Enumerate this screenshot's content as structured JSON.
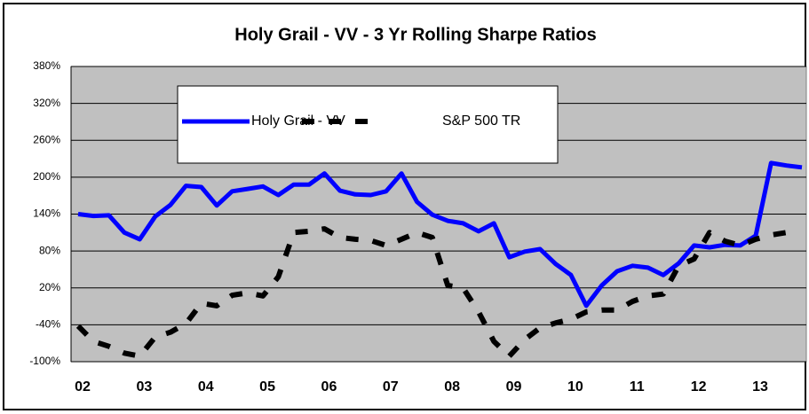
{
  "chart_data": {
    "type": "line",
    "title": "Holy Grail - VV - 3 Yr Rolling Sharpe Ratios",
    "categories": [
      "02",
      null,
      null,
      null,
      "03",
      null,
      null,
      null,
      "04",
      null,
      null,
      null,
      "05",
      null,
      null,
      null,
      "06",
      null,
      null,
      null,
      "07",
      null,
      null,
      null,
      "08",
      null,
      null,
      null,
      "09",
      null,
      null,
      null,
      "10",
      null,
      null,
      null,
      "11",
      null,
      null,
      null,
      "12",
      null,
      null,
      null,
      "13",
      null,
      null,
      null
    ],
    "series": [
      {
        "name": "Holy Grail - VV",
        "color": "#0000ff",
        "dashed": false,
        "values": [
          140,
          137,
          138,
          110,
          99,
          136,
          155,
          186,
          184,
          154,
          177,
          181,
          185,
          171,
          188,
          188,
          206,
          178,
          172,
          171,
          177,
          206,
          160,
          139,
          129,
          125,
          112,
          125,
          70,
          79,
          83,
          59,
          41,
          -9,
          24,
          47,
          56,
          53,
          41,
          60,
          89,
          86,
          90,
          89,
          105,
          223,
          219,
          216
        ]
      },
      {
        "name": "S&P 500 TR",
        "color": "#000000",
        "dashed": true,
        "values": [
          -42,
          -67,
          -75,
          -86,
          -91,
          -60,
          -52,
          -38,
          -5,
          -9,
          8,
          12,
          7,
          38,
          110,
          112,
          116,
          102,
          99,
          97,
          89,
          99,
          110,
          102,
          24,
          20,
          -19,
          -67,
          -91,
          -64,
          -45,
          -37,
          -31,
          -19,
          -16,
          -16,
          -2,
          7,
          10,
          56,
          67,
          110,
          96,
          89,
          99,
          106,
          110,
          null
        ]
      }
    ],
    "ylim": [
      -100,
      380
    ],
    "yticks": [
      {
        "value": -100,
        "label": "-100%"
      },
      {
        "value": -40,
        "label": "-40%"
      },
      {
        "value": 20,
        "label": "20%"
      },
      {
        "value": 80,
        "label": "80%"
      },
      {
        "value": 140,
        "label": "140%"
      },
      {
        "value": 200,
        "label": "200%"
      },
      {
        "value": 260,
        "label": "260%"
      },
      {
        "value": 320,
        "label": "320%"
      },
      {
        "value": 380,
        "label": "380%"
      }
    ],
    "grid": true,
    "legend": "top-left"
  }
}
